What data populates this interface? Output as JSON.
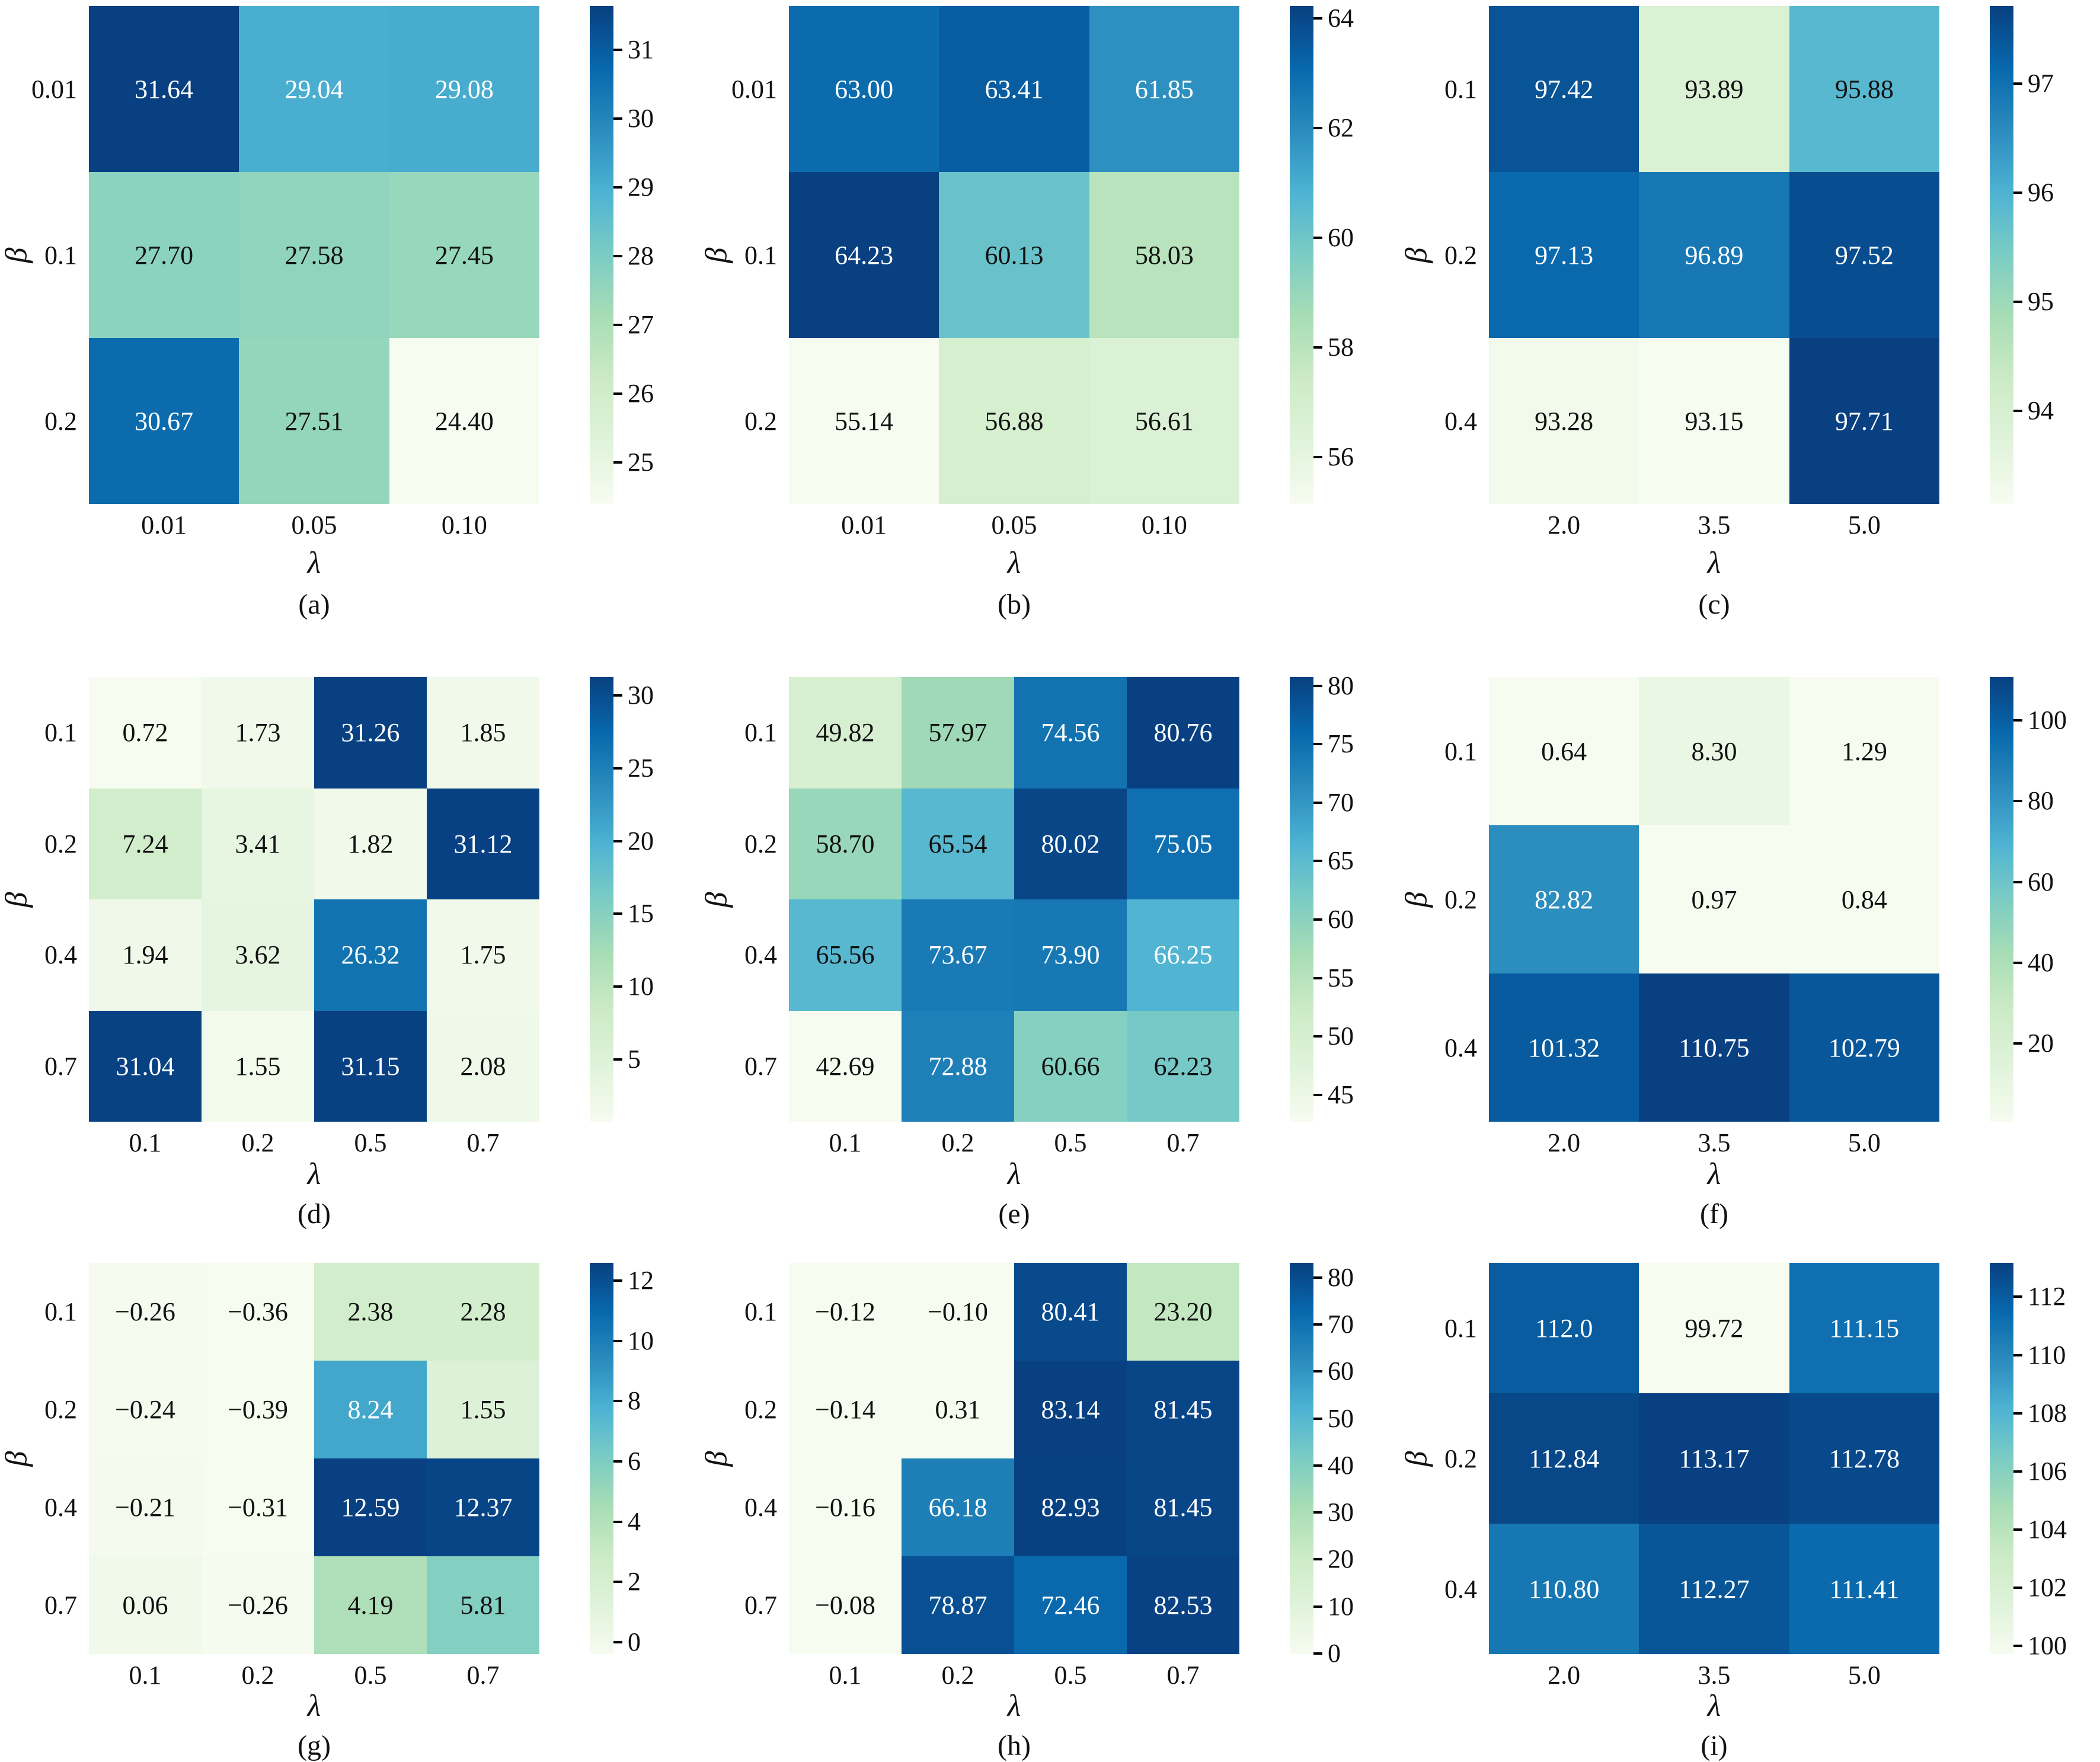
{
  "figure": {
    "background": "#ffffff",
    "colormap": "GnBu",
    "colormap_stops": [
      "#f7fcf0",
      "#e0f3db",
      "#ccebc5",
      "#a8ddb5",
      "#7bccc4",
      "#4eb3d3",
      "#2b8cbe",
      "#0868ac",
      "#084081"
    ],
    "annotation_text_dark": "#111111",
    "annotation_text_light": "#ffffff",
    "tick_color": "#000000"
  },
  "chart_data": [
    {
      "type": "heatmap",
      "panel": "(a)",
      "xlabel": "λ",
      "ylabel": "β",
      "x": [
        "0.01",
        "0.05",
        "0.10"
      ],
      "y": [
        "0.01",
        "0.1",
        "0.2"
      ],
      "values": [
        [
          31.64,
          29.04,
          29.08
        ],
        [
          27.7,
          27.58,
          27.45
        ],
        [
          30.67,
          27.51,
          24.4
        ]
      ],
      "value_labels": [
        [
          "31.64",
          "29.04",
          "29.08"
        ],
        [
          "27.70",
          "27.58",
          "27.45"
        ],
        [
          "30.67",
          "27.51",
          "24.40"
        ]
      ],
      "colorbar_ticks": [
        25,
        26,
        27,
        28,
        29,
        30,
        31
      ],
      "vmin": 24.4,
      "vmax": 31.64,
      "colormap": "GnBu",
      "legend_position": "right",
      "grid": false
    },
    {
      "type": "heatmap",
      "panel": "(b)",
      "xlabel": "λ",
      "ylabel": "β",
      "x": [
        "0.01",
        "0.05",
        "0.10"
      ],
      "y": [
        "0.01",
        "0.1",
        "0.2"
      ],
      "values": [
        [
          63.0,
          63.41,
          61.85
        ],
        [
          64.23,
          60.13,
          58.03
        ],
        [
          55.14,
          56.88,
          56.61
        ]
      ],
      "value_labels": [
        [
          "63.00",
          "63.41",
          "61.85"
        ],
        [
          "64.23",
          "60.13",
          "58.03"
        ],
        [
          "55.14",
          "56.88",
          "56.61"
        ]
      ],
      "colorbar_ticks": [
        56,
        58,
        60,
        62,
        64
      ],
      "vmin": 55.14,
      "vmax": 64.23,
      "colormap": "GnBu",
      "legend_position": "right",
      "grid": false
    },
    {
      "type": "heatmap",
      "panel": "(c)",
      "xlabel": "λ",
      "ylabel": "β",
      "x": [
        "2.0",
        "3.5",
        "5.0"
      ],
      "y": [
        "0.1",
        "0.2",
        "0.4"
      ],
      "values": [
        [
          97.42,
          93.89,
          95.88
        ],
        [
          97.13,
          96.89,
          97.52
        ],
        [
          93.28,
          93.15,
          97.71
        ]
      ],
      "value_labels": [
        [
          "97.42",
          "93.89",
          "95.88"
        ],
        [
          "97.13",
          "96.89",
          "97.52"
        ],
        [
          "93.28",
          "93.15",
          "97.71"
        ]
      ],
      "colorbar_ticks": [
        94,
        95,
        96,
        97
      ],
      "vmin": 93.15,
      "vmax": 97.71,
      "colormap": "GnBu",
      "legend_position": "right",
      "grid": false
    },
    {
      "type": "heatmap",
      "panel": "(d)",
      "xlabel": "λ",
      "ylabel": "β",
      "x": [
        "0.1",
        "0.2",
        "0.5",
        "0.7"
      ],
      "y": [
        "0.1",
        "0.2",
        "0.4",
        "0.7"
      ],
      "values": [
        [
          0.72,
          1.73,
          31.26,
          1.85
        ],
        [
          7.24,
          3.41,
          1.82,
          31.12
        ],
        [
          1.94,
          3.62,
          26.32,
          1.75
        ],
        [
          31.04,
          1.55,
          31.15,
          2.08
        ]
      ],
      "value_labels": [
        [
          "0.72",
          "1.73",
          "31.26",
          "1.85"
        ],
        [
          "7.24",
          "3.41",
          "1.82",
          "31.12"
        ],
        [
          "1.94",
          "3.62",
          "26.32",
          "1.75"
        ],
        [
          "31.04",
          "1.55",
          "31.15",
          "2.08"
        ]
      ],
      "colorbar_ticks": [
        5,
        10,
        15,
        20,
        25,
        30
      ],
      "vmin": 0.72,
      "vmax": 31.26,
      "colormap": "GnBu",
      "legend_position": "right",
      "grid": false
    },
    {
      "type": "heatmap",
      "panel": "(e)",
      "xlabel": "λ",
      "ylabel": "β",
      "x": [
        "0.1",
        "0.2",
        "0.5",
        "0.7"
      ],
      "y": [
        "0.1",
        "0.2",
        "0.4",
        "0.7"
      ],
      "values": [
        [
          49.82,
          57.97,
          74.56,
          80.76
        ],
        [
          58.7,
          65.54,
          80.02,
          75.05
        ],
        [
          65.56,
          73.67,
          73.9,
          66.25
        ],
        [
          42.69,
          72.88,
          60.66,
          62.23
        ]
      ],
      "value_labels": [
        [
          "49.82",
          "57.97",
          "74.56",
          "80.76"
        ],
        [
          "58.70",
          "65.54",
          "80.02",
          "75.05"
        ],
        [
          "65.56",
          "73.67",
          "73.90",
          "66.25"
        ],
        [
          "42.69",
          "72.88",
          "60.66",
          "62.23"
        ]
      ],
      "colorbar_ticks": [
        45,
        50,
        55,
        60,
        65,
        70,
        75,
        80
      ],
      "vmin": 42.69,
      "vmax": 80.76,
      "colormap": "GnBu",
      "legend_position": "right",
      "grid": false
    },
    {
      "type": "heatmap",
      "panel": "(f)",
      "xlabel": "λ",
      "ylabel": "β",
      "x": [
        "2.0",
        "3.5",
        "5.0"
      ],
      "y": [
        "0.1",
        "0.2",
        "0.4"
      ],
      "values": [
        [
          0.64,
          8.3,
          1.29
        ],
        [
          82.82,
          0.97,
          0.84
        ],
        [
          101.32,
          110.75,
          102.79
        ]
      ],
      "value_labels": [
        [
          "0.64",
          "8.30",
          "1.29"
        ],
        [
          "82.82",
          "0.97",
          "0.84"
        ],
        [
          "101.32",
          "110.75",
          "102.79"
        ]
      ],
      "colorbar_ticks": [
        20,
        40,
        60,
        80,
        100
      ],
      "vmin": 0.64,
      "vmax": 110.75,
      "colormap": "GnBu",
      "legend_position": "right",
      "grid": false
    },
    {
      "type": "heatmap",
      "panel": "(g)",
      "xlabel": "λ",
      "ylabel": "β",
      "x": [
        "0.1",
        "0.2",
        "0.5",
        "0.7"
      ],
      "y": [
        "0.1",
        "0.2",
        "0.4",
        "0.7"
      ],
      "values": [
        [
          -0.26,
          -0.36,
          2.38,
          2.28
        ],
        [
          -0.24,
          -0.39,
          8.24,
          1.55
        ],
        [
          -0.21,
          -0.31,
          12.59,
          12.37
        ],
        [
          0.06,
          -0.26,
          4.19,
          5.81
        ]
      ],
      "value_labels": [
        [
          "−0.26",
          "−0.36",
          "2.38",
          "2.28"
        ],
        [
          "−0.24",
          "−0.39",
          "8.24",
          "1.55"
        ],
        [
          "−0.21",
          "−0.31",
          "12.59",
          "12.37"
        ],
        [
          "0.06",
          "−0.26",
          "4.19",
          "5.81"
        ]
      ],
      "colorbar_ticks": [
        0,
        2,
        4,
        6,
        8,
        10,
        12
      ],
      "vmin": -0.39,
      "vmax": 12.59,
      "colormap": "GnBu",
      "legend_position": "right",
      "grid": false
    },
    {
      "type": "heatmap",
      "panel": "(h)",
      "xlabel": "λ",
      "ylabel": "β",
      "x": [
        "0.1",
        "0.2",
        "0.5",
        "0.7"
      ],
      "y": [
        "0.1",
        "0.2",
        "0.4",
        "0.7"
      ],
      "values": [
        [
          -0.12,
          -0.1,
          80.41,
          23.2
        ],
        [
          -0.14,
          0.31,
          83.14,
          81.45
        ],
        [
          -0.16,
          66.18,
          82.93,
          81.45
        ],
        [
          -0.08,
          78.87,
          72.46,
          82.53
        ]
      ],
      "value_labels": [
        [
          "−0.12",
          "−0.10",
          "80.41",
          "23.20"
        ],
        [
          "−0.14",
          "0.31",
          "83.14",
          "81.45"
        ],
        [
          "−0.16",
          "66.18",
          "82.93",
          "81.45"
        ],
        [
          "−0.08",
          "78.87",
          "72.46",
          "82.53"
        ]
      ],
      "colorbar_ticks": [
        0,
        10,
        20,
        30,
        40,
        50,
        60,
        70,
        80
      ],
      "vmin": -0.16,
      "vmax": 83.14,
      "colormap": "GnBu",
      "legend_position": "right",
      "grid": false
    },
    {
      "type": "heatmap",
      "panel": "(i)",
      "xlabel": "λ",
      "ylabel": "β",
      "x": [
        "2.0",
        "3.5",
        "5.0"
      ],
      "y": [
        "0.1",
        "0.2",
        "0.4"
      ],
      "values": [
        [
          112.0,
          99.72,
          111.15
        ],
        [
          112.84,
          113.17,
          112.78
        ],
        [
          110.8,
          112.27,
          111.41
        ]
      ],
      "value_labels": [
        [
          "112.0",
          "99.72",
          "111.15"
        ],
        [
          "112.84",
          "113.17",
          "112.78"
        ],
        [
          "110.80",
          "112.27",
          "111.41"
        ]
      ],
      "colorbar_ticks": [
        100,
        102,
        104,
        106,
        108,
        110,
        112
      ],
      "vmin": 99.72,
      "vmax": 113.17,
      "colormap": "GnBu",
      "legend_position": "right",
      "grid": false
    }
  ]
}
